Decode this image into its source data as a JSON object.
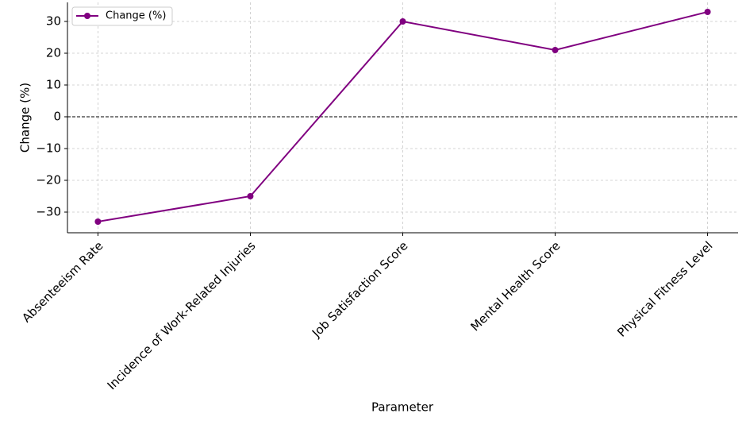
{
  "chart_data": {
    "type": "line",
    "x_label": "Parameter",
    "y_label": "Change (%)",
    "categories": [
      "Absenteeism Rate",
      "Incidence of Work-Related Injuries",
      "Job Satisfaction Score",
      "Mental Health Score",
      "Physical Fitness Level"
    ],
    "series": [
      {
        "name": "Change (%)",
        "color": "#800080",
        "values": [
          -33,
          -25,
          30,
          21,
          33
        ]
      }
    ],
    "ylim": [
      -36.5,
      36
    ],
    "yticks": [
      {
        "value": -30,
        "label": "−30"
      },
      {
        "value": -20,
        "label": "−20"
      },
      {
        "value": -10,
        "label": "−10"
      },
      0,
      10,
      20,
      30
    ],
    "hline": 0,
    "grid": true,
    "legend": "upper left"
  }
}
